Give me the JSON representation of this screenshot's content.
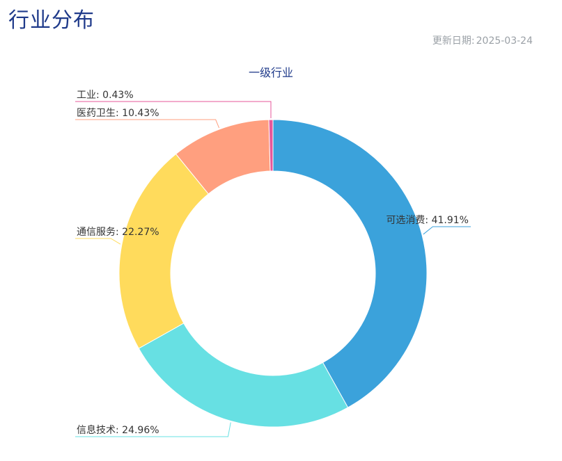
{
  "header": {
    "title": "行业分布",
    "update_label": "更新日期:",
    "update_date": "2025-03-24"
  },
  "chart_data": {
    "type": "pie",
    "donut": true,
    "title": "一级行业",
    "categories": [
      "可选消费",
      "信息技术",
      "通信服务",
      "医药卫生",
      "工业"
    ],
    "values": [
      41.91,
      24.96,
      22.27,
      10.43,
      0.43
    ],
    "unit": "%",
    "colors": [
      "#3ba2db",
      "#67e0e3",
      "#ffdb5c",
      "#ff9f7f",
      "#e7579a"
    ],
    "labels": [
      "可选消费: 41.91%",
      "信息技术: 24.96%",
      "通信服务: 22.27%",
      "医药卫生: 10.43%",
      "工业: 0.43%"
    ],
    "start_angle_deg": 0,
    "direction": "clockwise",
    "legend": "none"
  }
}
